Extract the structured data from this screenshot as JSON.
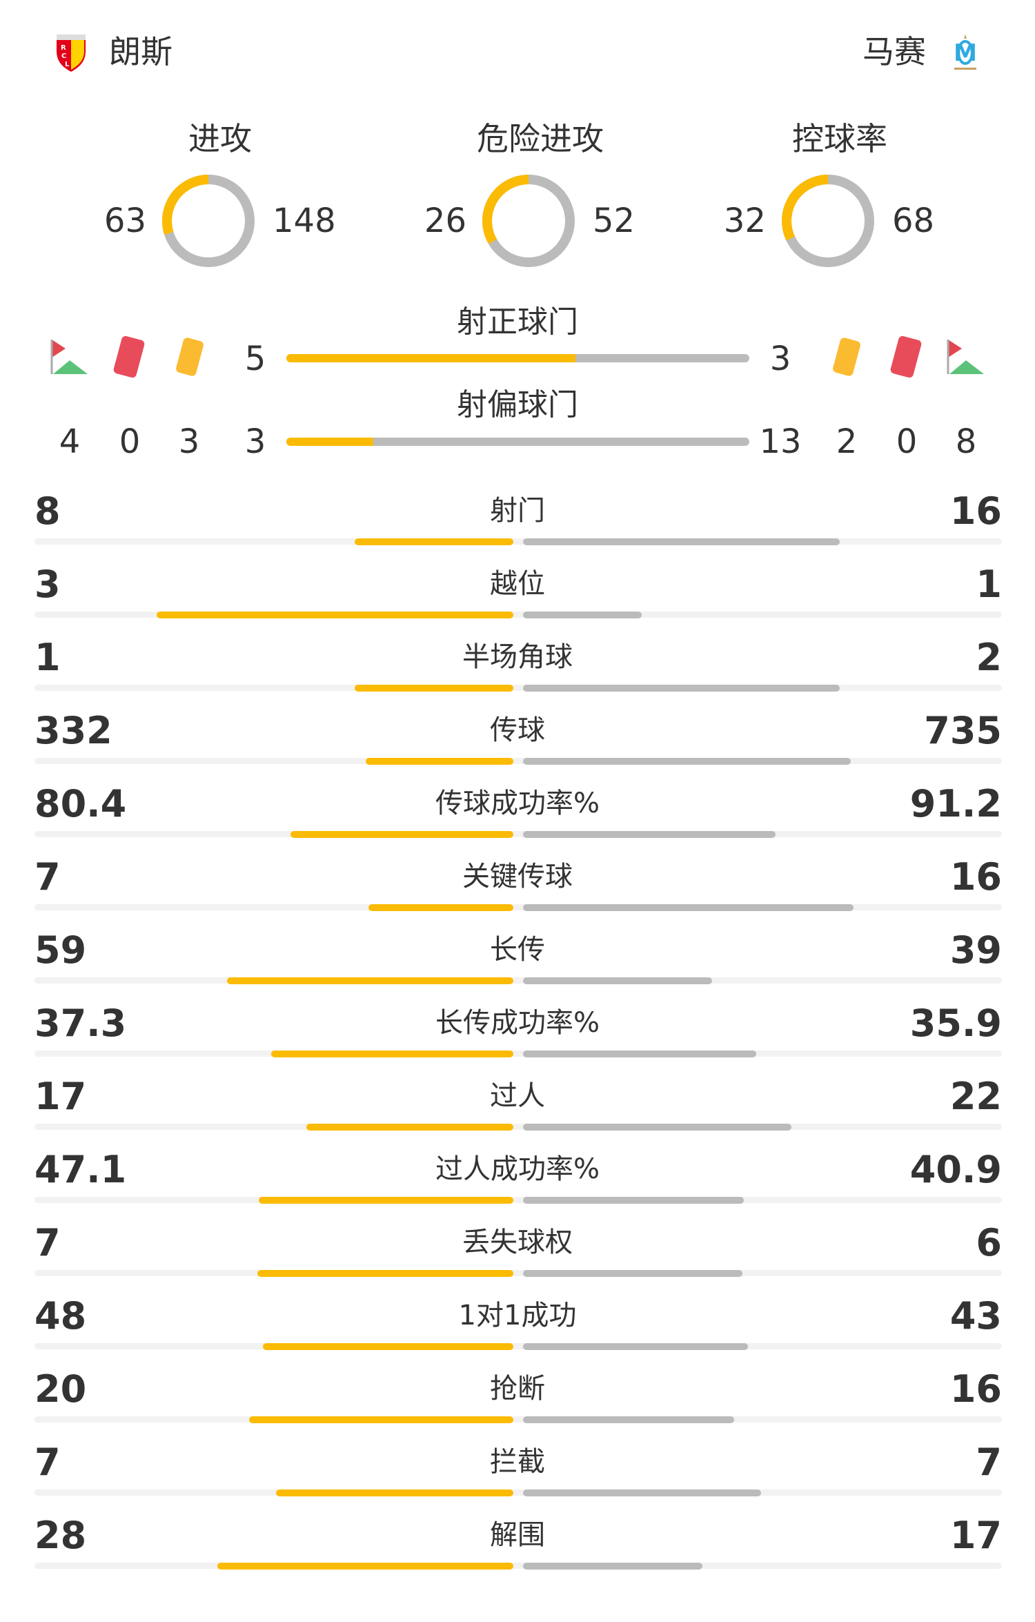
{
  "home": {
    "name": "朗斯",
    "logo_text": "RCL"
  },
  "away": {
    "name": "马赛",
    "logo_text": "OM"
  },
  "colors": {
    "home": "#fbbb05",
    "away": "#bbbbbb",
    "track": "#f2f2f2"
  },
  "donuts": [
    {
      "label": "进攻",
      "home": 63,
      "away": 148
    },
    {
      "label": "危险进攻",
      "home": 26,
      "away": 52
    },
    {
      "label": "控球率",
      "home": 32,
      "away": 68
    }
  ],
  "shots_on": {
    "label": "射正球门",
    "home": 5,
    "away": 3
  },
  "shots_off": {
    "label": "射偏球门",
    "home": 3,
    "away": 13
  },
  "home_events": {
    "corners": 4,
    "red": 0,
    "yellow": 3
  },
  "away_events": {
    "corners": 8,
    "red": 0,
    "yellow": 2
  },
  "icons": {
    "corner": "corner-flag-icon",
    "red": "red-card-icon",
    "yellow": "yellow-card-icon"
  },
  "stats": [
    {
      "label": "射门",
      "home": "8",
      "away": "16"
    },
    {
      "label": "越位",
      "home": "3",
      "away": "1"
    },
    {
      "label": "半场角球",
      "home": "1",
      "away": "2"
    },
    {
      "label": "传球",
      "home": "332",
      "away": "735"
    },
    {
      "label": "传球成功率%",
      "home": "80.4",
      "away": "91.2"
    },
    {
      "label": "关键传球",
      "home": "7",
      "away": "16"
    },
    {
      "label": "长传",
      "home": "59",
      "away": "39"
    },
    {
      "label": "长传成功率%",
      "home": "37.3",
      "away": "35.9"
    },
    {
      "label": "过人",
      "home": "17",
      "away": "22"
    },
    {
      "label": "过人成功率%",
      "home": "47.1",
      "away": "40.9"
    },
    {
      "label": "丢失球权",
      "home": "7",
      "away": "6"
    },
    {
      "label": "1对1成功",
      "home": "48",
      "away": "43"
    },
    {
      "label": "抢断",
      "home": "20",
      "away": "16"
    },
    {
      "label": "拦截",
      "home": "7",
      "away": "7"
    },
    {
      "label": "解围",
      "home": "28",
      "away": "17"
    }
  ]
}
